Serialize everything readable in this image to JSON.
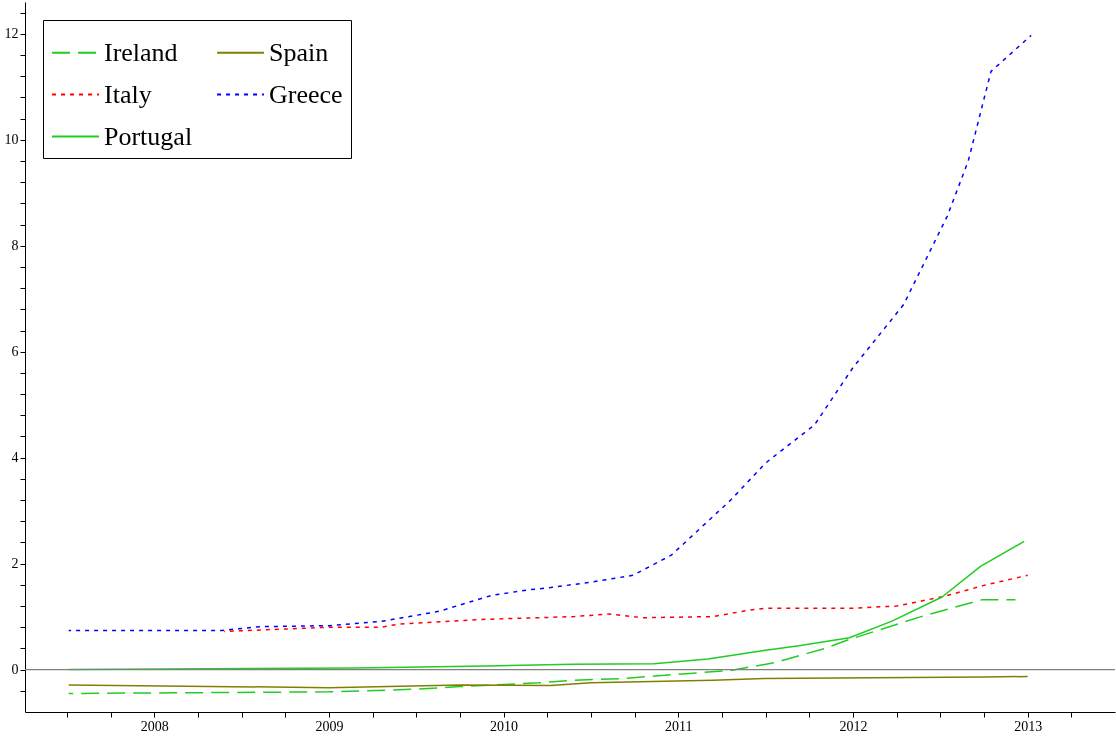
{
  "chart_data": {
    "type": "line",
    "legend": "top left",
    "grid": false,
    "xlim": [
      2007.26,
      2013.5
    ],
    "ylim": [
      -0.8,
      12.6
    ],
    "xticks": [
      {
        "value": 2007.5,
        "label": null
      },
      {
        "value": 2007.75,
        "label": null
      },
      2008,
      {
        "value": 2008.25,
        "label": null
      },
      {
        "value": 2008.5,
        "label": null
      },
      {
        "value": 2008.75,
        "label": null
      },
      2009,
      {
        "value": 2009.25,
        "label": null
      },
      {
        "value": 2009.5,
        "label": null
      },
      {
        "value": 2009.75,
        "label": null
      },
      2010,
      {
        "value": 2010.25,
        "label": null
      },
      {
        "value": 2010.5,
        "label": null
      },
      {
        "value": 2010.75,
        "label": null
      },
      2011,
      {
        "value": 2011.25,
        "label": null
      },
      {
        "value": 2011.5,
        "label": null
      },
      {
        "value": 2011.75,
        "label": null
      },
      2012,
      {
        "value": 2012.25,
        "label": null
      },
      {
        "value": 2012.5,
        "label": null
      },
      {
        "value": 2012.75,
        "label": null
      },
      2013,
      {
        "value": 2013.25,
        "label": null
      }
    ],
    "yticks": [
      {
        "value": -0.4,
        "label": null
      },
      0,
      {
        "value": 0.4,
        "label": null
      },
      {
        "value": 0.8,
        "label": null
      },
      {
        "value": 1.2,
        "label": null
      },
      {
        "value": 1.6,
        "label": null
      },
      2,
      {
        "value": 2.4,
        "label": null
      },
      {
        "value": 2.8,
        "label": null
      },
      {
        "value": 3.2,
        "label": null
      },
      {
        "value": 3.6,
        "label": null
      },
      4,
      {
        "value": 4.4,
        "label": null
      },
      {
        "value": 4.8,
        "label": null
      },
      {
        "value": 5.2,
        "label": null
      },
      {
        "value": 5.6,
        "label": null
      },
      6,
      {
        "value": 6.4,
        "label": null
      },
      {
        "value": 6.8,
        "label": null
      },
      {
        "value": 7.2,
        "label": null
      },
      {
        "value": 7.6,
        "label": null
      },
      8,
      {
        "value": 8.4,
        "label": null
      },
      {
        "value": 8.8,
        "label": null
      },
      {
        "value": 9.2,
        "label": null
      },
      {
        "value": 9.6,
        "label": null
      },
      10,
      {
        "value": 10.4,
        "label": null
      },
      {
        "value": 10.8,
        "label": null
      },
      {
        "value": 11.2,
        "label": null
      },
      {
        "value": 11.6,
        "label": null
      },
      12,
      {
        "value": 12.4,
        "label": null
      }
    ],
    "ref_lines": [
      {
        "axis": "y",
        "value": 0,
        "color": "#808080"
      }
    ],
    "series": [
      {
        "name": "Ireland",
        "color": "#22cc22",
        "line_style": "dashed",
        "x": [
          2007.51,
          2009.0,
          2009.5,
          2009.75,
          2010.2,
          2010.4,
          2010.68,
          2010.94,
          2011.29,
          2011.55,
          2011.84,
          2011.98,
          2012.39,
          2012.65,
          2012.74,
          2012.93
        ],
        "values": [
          -0.45,
          -0.42,
          -0.37,
          -0.32,
          -0.25,
          -0.2,
          -0.17,
          -0.1,
          -0.02,
          0.13,
          0.4,
          0.57,
          1.0,
          1.24,
          1.32,
          1.32
        ]
      },
      {
        "name": "Italy",
        "color": "#ff0000",
        "line_style": "dotted",
        "x": [
          2008.4,
          2009.0,
          2009.3,
          2009.4,
          2009.9,
          2010.4,
          2010.6,
          2010.8,
          2011.2,
          2011.4,
          2011.5,
          2012.0,
          2012.25,
          2012.52,
          2012.75,
          2013.0
        ],
        "values": [
          0.72,
          0.8,
          0.8,
          0.86,
          0.95,
          1.0,
          1.05,
          0.98,
          1.0,
          1.12,
          1.16,
          1.16,
          1.2,
          1.38,
          1.59,
          1.78
        ]
      },
      {
        "name": "Portugal",
        "color": "#22cc22",
        "line_style": "solid",
        "x": [
          2007.51,
          2009.15,
          2009.9,
          2010.4,
          2010.86,
          2011.17,
          2011.49,
          2011.69,
          2011.98,
          2012.22,
          2012.51,
          2012.73,
          2012.98
        ],
        "values": [
          0,
          0.03,
          0.07,
          0.1,
          0.11,
          0.2,
          0.36,
          0.45,
          0.6,
          0.91,
          1.37,
          1.95,
          2.42
        ]
      },
      {
        "name": "Spain",
        "color": "#808000",
        "line_style": "solid",
        "x": [
          2007.51,
          2009.0,
          2009.75,
          2010.27,
          2010.5,
          2011.2,
          2011.49,
          2012.75,
          2013.0
        ],
        "values": [
          -0.29,
          -0.34,
          -0.29,
          -0.3,
          -0.25,
          -0.2,
          -0.17,
          -0.14,
          -0.13
        ]
      },
      {
        "name": "Greece",
        "color": "#0000ff",
        "line_style": "dotted",
        "x": [
          2007.51,
          2008.39,
          2008.6,
          2009.0,
          2009.3,
          2009.63,
          2009.8,
          2009.93,
          2010.13,
          2010.27,
          2010.5,
          2010.74,
          2010.96,
          2011.3,
          2011.5,
          2011.78,
          2012.0,
          2012.29,
          2012.54,
          2012.66,
          2012.79,
          2013.02
        ],
        "values": [
          0.74,
          0.74,
          0.81,
          0.83,
          0.91,
          1.1,
          1.27,
          1.4,
          1.5,
          1.55,
          1.65,
          1.78,
          2.16,
          3.2,
          3.9,
          4.62,
          5.7,
          6.89,
          8.56,
          9.6,
          11.29,
          11.97
        ]
      }
    ]
  }
}
